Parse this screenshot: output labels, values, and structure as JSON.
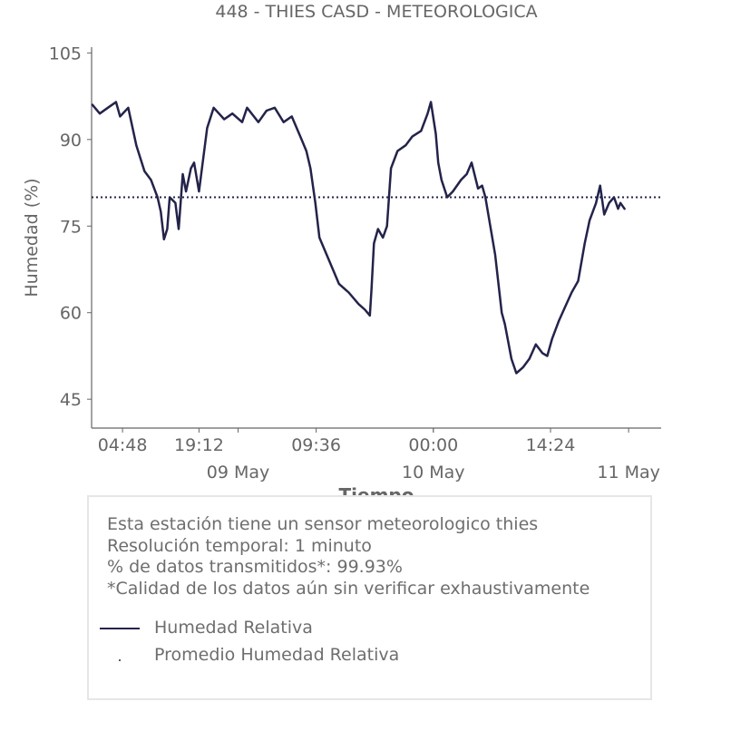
{
  "title": "448 - THIES CASD - METEOROLOGICA",
  "chart_data": {
    "type": "line",
    "xlabel": "Tiempo",
    "ylabel": "Humedad (%)",
    "ylim": [
      40,
      106
    ],
    "yticks": [
      45,
      60,
      75,
      90,
      105
    ],
    "x_range_hours": [
      -2.0,
      68.0
    ],
    "xticks": [
      {
        "hour": 1.8,
        "label": "04:48"
      },
      {
        "hour": 11.2,
        "label": "19:12"
      },
      {
        "hour": 25.6,
        "label": "09:36"
      },
      {
        "hour": 40.0,
        "label": "00:00"
      },
      {
        "hour": 54.4,
        "label": "14:24"
      }
    ],
    "date_labels": [
      {
        "hour": 16.0,
        "label": "09 May"
      },
      {
        "hour": 40.0,
        "label": "10 May"
      },
      {
        "hour": 64.0,
        "label": "11 May"
      }
    ],
    "average": 80,
    "series": [
      {
        "name": "Humedad Relativa",
        "color": "#23234a",
        "points": [
          [
            -1.9,
            96
          ],
          [
            -1.0,
            94.5
          ],
          [
            0,
            95.5
          ],
          [
            1.0,
            96.5
          ],
          [
            1.5,
            94
          ],
          [
            2.5,
            95.5
          ],
          [
            3.5,
            89
          ],
          [
            4.5,
            84.5
          ],
          [
            5.3,
            83
          ],
          [
            6.1,
            80
          ],
          [
            6.5,
            77.5
          ],
          [
            6.9,
            72.7
          ],
          [
            7.3,
            74.5
          ],
          [
            7.6,
            80
          ],
          [
            8.3,
            79
          ],
          [
            8.7,
            74.5
          ],
          [
            9.2,
            84
          ],
          [
            9.6,
            81
          ],
          [
            10.2,
            85
          ],
          [
            10.6,
            86
          ],
          [
            11.2,
            81
          ],
          [
            12.2,
            92
          ],
          [
            13.0,
            95.5
          ],
          [
            14.3,
            93.5
          ],
          [
            15.3,
            94.5
          ],
          [
            16.5,
            93
          ],
          [
            17.1,
            95.5
          ],
          [
            18.5,
            93
          ],
          [
            19.5,
            95
          ],
          [
            20.5,
            95.5
          ],
          [
            21.6,
            93
          ],
          [
            22.6,
            94
          ],
          [
            23.8,
            90
          ],
          [
            24.4,
            88
          ],
          [
            24.9,
            85
          ],
          [
            25.5,
            79
          ],
          [
            26.0,
            73
          ],
          [
            27.2,
            69
          ],
          [
            28.4,
            65
          ],
          [
            29.6,
            63.5
          ],
          [
            30.8,
            61.5
          ],
          [
            31.6,
            60.5
          ],
          [
            32.2,
            59.5
          ],
          [
            32.4,
            64
          ],
          [
            32.7,
            72
          ],
          [
            33.2,
            74.5
          ],
          [
            33.8,
            73
          ],
          [
            34.3,
            75
          ],
          [
            34.8,
            85
          ],
          [
            35.6,
            88
          ],
          [
            36.6,
            89
          ],
          [
            37.4,
            90.5
          ],
          [
            38.5,
            91.5
          ],
          [
            39.3,
            94.5
          ],
          [
            39.7,
            96.5
          ],
          [
            40.3,
            91
          ],
          [
            40.6,
            86
          ],
          [
            41.0,
            83
          ],
          [
            41.7,
            80
          ],
          [
            42.4,
            81
          ],
          [
            43.4,
            83
          ],
          [
            44.1,
            84
          ],
          [
            44.7,
            86
          ],
          [
            45.5,
            81.5
          ],
          [
            46.0,
            82
          ],
          [
            46.4,
            80
          ],
          [
            47.0,
            75
          ],
          [
            47.6,
            70
          ],
          [
            48.4,
            60
          ],
          [
            48.8,
            58
          ],
          [
            49.2,
            55
          ],
          [
            49.6,
            52
          ],
          [
            50.2,
            49.5
          ],
          [
            51.0,
            50.5
          ],
          [
            51.8,
            52
          ],
          [
            52.6,
            54.5
          ],
          [
            53.4,
            53
          ],
          [
            54.0,
            52.5
          ],
          [
            54.6,
            55.5
          ],
          [
            55.4,
            58.5
          ],
          [
            56.2,
            61
          ],
          [
            57.0,
            63.5
          ],
          [
            57.8,
            65.5
          ],
          [
            58.6,
            72
          ],
          [
            59.2,
            76
          ],
          [
            60.0,
            79
          ],
          [
            60.5,
            82
          ],
          [
            61.0,
            77
          ],
          [
            61.6,
            79
          ],
          [
            62.2,
            80
          ],
          [
            62.7,
            78
          ],
          [
            63.0,
            79
          ],
          [
            63.5,
            78
          ]
        ]
      },
      {
        "name": "Promedio Humedad Relativa",
        "color": "#23234a"
      }
    ]
  },
  "info": {
    "line1": "Esta estación tiene un sensor meteorologico thies",
    "line2": "Resolución temporal: 1 minuto",
    "line3": "% de datos transmitidos*: 99.93%",
    "line4": "*Calidad de los datos aún sin verificar exhaustivamente"
  }
}
